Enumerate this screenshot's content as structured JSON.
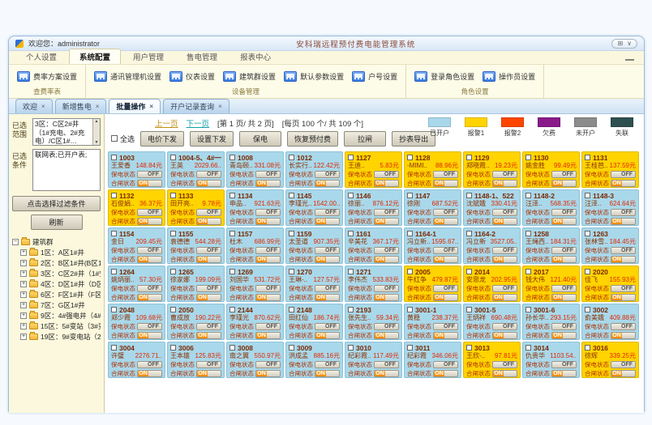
{
  "window": {
    "welcome": "欢迎您：administrator",
    "title": "安科瑞远程预付费电能管理系统",
    "controls": {
      "left_glyph": "⊞",
      "right_glyph": "∨",
      "minimize_glyph": "—"
    }
  },
  "menu_tabs": [
    {
      "label": "个人设置",
      "active": false
    },
    {
      "label": "系统配置",
      "active": true
    },
    {
      "label": "用户管理",
      "active": false
    },
    {
      "label": "售电管理",
      "active": false
    },
    {
      "label": "报表中心",
      "active": false
    }
  ],
  "ribbon": {
    "groups": [
      {
        "label": "查费率表",
        "items": [
          "费率方案设置"
        ]
      },
      {
        "label": "设备管理",
        "items": [
          "通讯管理机设置",
          "仪表设置",
          "建筑群设置",
          "默认参数设置",
          "户号设置"
        ]
      },
      {
        "label": "角色设置",
        "items": [
          "登录角色设置",
          "操作员设置"
        ]
      }
    ]
  },
  "doc_tabs": [
    {
      "label": "欢迎",
      "close": "×",
      "active": false
    },
    {
      "label": "新增售电",
      "close": "×",
      "active": false
    },
    {
      "label": "批量操作",
      "close": "×",
      "active": true
    },
    {
      "label": "开户记录查询",
      "close": "×",
      "active": false
    }
  ],
  "sidebar": {
    "range_label": "已选范围",
    "range_value": "3区：C区2#井（1#充电、2#充电）/C区1#…",
    "cond_label": "已选条件",
    "cond_value": "联网表;已开户表;",
    "filter_button": "点击选择过滤条件",
    "refresh_button": "刷新",
    "tree": {
      "root": "建筑群",
      "items": [
        "1区：A区1#井",
        "2区：B区1#井(B区1#…",
        "3区：C区2#井（1#空…",
        "4区：D区1#井（D区1…",
        "6区：F区1#井（F区1#…",
        "7区：G区1#井",
        "9区：4#强电井（4#强…",
        "15区：5#变站（3#变电…",
        "19区：9#变电站（2#…"
      ]
    }
  },
  "pagination": {
    "prev": "上一页",
    "next": "下一页",
    "page_info": "[第 1 页/ 共 2 页]",
    "count_info": "[每页 100 个/ 共 109 个]"
  },
  "actions": {
    "select_all": "全选",
    "buttons": [
      "电价下发",
      "设置下发",
      "保电",
      "恢复预付费",
      "拉闸",
      "抄表导出"
    ]
  },
  "legend": [
    {
      "label": "已开户",
      "color": "#a9d8ea"
    },
    {
      "label": "报警1",
      "color": "#ffd400"
    },
    {
      "label": "报警2",
      "color": "#ff4500"
    },
    {
      "label": "欠费",
      "color": "#8a1a8a"
    },
    {
      "label": "未开户",
      "color": "#8c8c8c"
    },
    {
      "label": "失联",
      "color": "#2e4f4f"
    }
  ],
  "card_labels": {
    "protect": "保电状态",
    "switch": "合闸状态",
    "off": "OFF",
    "on": "ON"
  },
  "state_colors": {
    "opened": "#a9d8ea",
    "alarm1": "#ffd400",
    "on_accent": "#f08800"
  },
  "cards": [
    {
      "id": "1003",
      "name": "王爱香",
      "amount": "148.84元",
      "state": "opened",
      "protect": "OFF",
      "switch": "ON"
    },
    {
      "id": "1004-5、4#一",
      "name": "王英",
      "amount": "2029.66..",
      "state": "opened",
      "protect": "OFF",
      "switch": "ON"
    },
    {
      "id": "1008",
      "name": "青岛颐..",
      "amount": "331.08元",
      "state": "opened",
      "protect": "OFF",
      "switch": "ON"
    },
    {
      "id": "1012",
      "name": "长实行..",
      "amount": "122.42元",
      "state": "opened",
      "protect": "OFF",
      "switch": "ON"
    },
    {
      "id": "1127",
      "name": "王迪..",
      "amount": "5.83元",
      "state": "alarm1",
      "protect": "OFF",
      "switch": "ON"
    },
    {
      "id": "1128",
      "name": "-MIMI..",
      "amount": "88.96元",
      "state": "alarm1",
      "protect": "OFF",
      "switch": "ON"
    },
    {
      "id": "1129",
      "name": "郑晓霞..",
      "amount": "19.23元",
      "state": "alarm1",
      "protect": "OFF",
      "switch": "ON"
    },
    {
      "id": "1130",
      "name": "姚金胜",
      "amount": "99.49元",
      "state": "alarm1",
      "protect": "OFF",
      "switch": "ON"
    },
    {
      "id": "1131",
      "name": "王桂芭..",
      "amount": "137.59元",
      "state": "alarm1",
      "protect": "OFF",
      "switch": "ON"
    },
    {
      "id": "1132",
      "name": "石俊娟..",
      "amount": "36.37元",
      "state": "alarm1",
      "protect": "OFF",
      "switch": "ON"
    },
    {
      "id": "1133",
      "name": "田开亮..",
      "amount": "9.78元",
      "state": "alarm1",
      "protect": "OFF",
      "switch": "ON"
    },
    {
      "id": "1134",
      "name": "申品..",
      "amount": "921.63元",
      "state": "opened",
      "protect": "OFF",
      "switch": "ON"
    },
    {
      "id": "1145",
      "name": "李瑾光..",
      "amount": "1542.00..",
      "state": "opened",
      "protect": "OFF",
      "switch": "ON"
    },
    {
      "id": "1146",
      "name": "徐丽..",
      "amount": "876.12元",
      "state": "opened",
      "protect": "OFF",
      "switch": "ON"
    },
    {
      "id": "1147",
      "name": "徐刚",
      "amount": "687.52元",
      "state": "opened",
      "protect": "OFF",
      "switch": "ON"
    },
    {
      "id": "1148-1、522",
      "name": "沈斌娥",
      "amount": "330.41元",
      "state": "opened",
      "protect": "OFF",
      "switch": "ON"
    },
    {
      "id": "1148-2",
      "name": "汪泽..",
      "amount": "568.35元",
      "state": "opened",
      "protect": "OFF",
      "switch": "ON"
    },
    {
      "id": "1148-3",
      "name": "汪泽..",
      "amount": "624.64元",
      "state": "opened",
      "protect": "OFF",
      "switch": "ON"
    },
    {
      "id": "1154",
      "name": "金日",
      "amount": "209.45元",
      "state": "opened",
      "protect": "OFF",
      "switch": "ON"
    },
    {
      "id": "1155",
      "name": "袁德德",
      "amount": "544.28元",
      "state": "opened",
      "protect": "OFF",
      "switch": "ON"
    },
    {
      "id": "1157",
      "name": "杜木",
      "amount": "686.99元",
      "state": "opened",
      "protect": "OFF",
      "switch": "ON"
    },
    {
      "id": "1159",
      "name": "太圣道",
      "amount": "907.35元",
      "state": "opened",
      "protect": "OFF",
      "switch": "ON"
    },
    {
      "id": "1161",
      "name": "辛美花",
      "amount": "367.17元",
      "state": "opened",
      "protect": "OFF",
      "switch": "ON"
    },
    {
      "id": "1164-1",
      "name": "冯立新..",
      "amount": "1595.67..",
      "state": "opened",
      "protect": "OFF",
      "switch": "ON"
    },
    {
      "id": "1164-2",
      "name": "冯立新",
      "amount": "3527.05..",
      "state": "opened",
      "protect": "OFF",
      "switch": "ON"
    },
    {
      "id": "1258",
      "name": "王绳西..",
      "amount": "184.31元",
      "state": "opened",
      "protect": "OFF",
      "switch": "ON"
    },
    {
      "id": "1263",
      "name": "张林雪..",
      "amount": "184.45元",
      "state": "opened",
      "protect": "OFF",
      "switch": "ON"
    },
    {
      "id": "1264",
      "name": "姚炳丽..",
      "amount": "57.30元",
      "state": "opened",
      "protect": "OFF",
      "switch": "ON"
    },
    {
      "id": "1265",
      "name": "徐家娜",
      "amount": "199.09元",
      "state": "opened",
      "protect": "OFF",
      "switch": "ON"
    },
    {
      "id": "1269",
      "name": "刘国华",
      "amount": "531.72元",
      "state": "opened",
      "protect": "OFF",
      "switch": "ON"
    },
    {
      "id": "1270",
      "name": "王琳-..",
      "amount": "127.57元",
      "state": "opened",
      "protect": "OFF",
      "switch": "ON"
    },
    {
      "id": "1271",
      "name": "李伟杰",
      "amount": "533.83元",
      "state": "opened",
      "protect": "OFF",
      "switch": "ON"
    },
    {
      "id": "2005",
      "name": "牛红争",
      "amount": "479.87元",
      "state": "alarm1",
      "protect": "OFF",
      "switch": "ON"
    },
    {
      "id": "2014",
      "name": "安思龙",
      "amount": "202.95元",
      "state": "alarm1",
      "protect": "OFF",
      "switch": "ON"
    },
    {
      "id": "2017",
      "name": "钱大伟",
      "amount": "121.40元",
      "state": "alarm1",
      "protect": "OFF",
      "switch": "ON"
    },
    {
      "id": "2020",
      "name": "佳飞",
      "amount": "155.93元",
      "state": "alarm1",
      "protect": "OFF",
      "switch": "ON"
    },
    {
      "id": "2048",
      "name": "郑少霞",
      "amount": "109.68元",
      "state": "opened",
      "protect": "OFF",
      "switch": "ON"
    },
    {
      "id": "2050",
      "name": "曹成放",
      "amount": "190.22元",
      "state": "opened",
      "protect": "OFF",
      "switch": "ON"
    },
    {
      "id": "2144",
      "name": "李瑾光",
      "amount": "870.62元",
      "state": "opened",
      "protect": "OFF",
      "switch": "ON"
    },
    {
      "id": "2148",
      "name": "田红仙",
      "amount": "186.74元",
      "state": "opened",
      "protect": "OFF",
      "switch": "ON"
    },
    {
      "id": "2193",
      "name": "张先生..",
      "amount": "59.34元",
      "state": "opened",
      "protect": "OFF",
      "switch": "ON"
    },
    {
      "id": "3001-1",
      "name": "黄稳",
      "amount": "238.37元",
      "state": "opened",
      "protect": "OFF",
      "switch": "ON"
    },
    {
      "id": "3001-5",
      "name": "王炳祥",
      "amount": "690.48元",
      "state": "opened",
      "protect": "OFF",
      "switch": "ON"
    },
    {
      "id": "3001-6",
      "name": "孙长华..",
      "amount": "293.15元",
      "state": "opened",
      "protect": "OFF",
      "switch": "ON"
    },
    {
      "id": "3002",
      "name": "俞美娥",
      "amount": "409.88元",
      "state": "opened",
      "protect": "OFF",
      "switch": "ON"
    },
    {
      "id": "3004",
      "name": "许璧",
      "amount": "2276.71..",
      "state": "opened",
      "protect": "OFF",
      "switch": "ON"
    },
    {
      "id": "3006",
      "name": "王本雄",
      "amount": "125.83元",
      "state": "opened",
      "protect": "OFF",
      "switch": "ON"
    },
    {
      "id": "3008",
      "name": "南之翼",
      "amount": "550.97元",
      "state": "opened",
      "protect": "OFF",
      "switch": "ON"
    },
    {
      "id": "3009",
      "name": "洪成孟",
      "amount": "885.16元",
      "state": "opened",
      "protect": "OFF",
      "switch": "ON"
    },
    {
      "id": "3010",
      "name": "纪彩霞..",
      "amount": "117.49元",
      "state": "opened",
      "protect": "OFF",
      "switch": "ON"
    },
    {
      "id": "3011",
      "name": "纪彩霞",
      "amount": "346.06元",
      "state": "opened",
      "protect": "OFF",
      "switch": "ON"
    },
    {
      "id": "3013",
      "name": "王欣-..",
      "amount": "97.81元",
      "state": "alarm1",
      "protect": "OFF",
      "switch": "ON"
    },
    {
      "id": "3014",
      "name": "仇贵华",
      "amount": "1103.54..",
      "state": "opened",
      "protect": "OFF",
      "switch": "ON"
    },
    {
      "id": "3016",
      "name": "徐辉",
      "amount": "339.25元",
      "state": "alarm1",
      "protect": "OFF",
      "switch": "ON"
    }
  ]
}
